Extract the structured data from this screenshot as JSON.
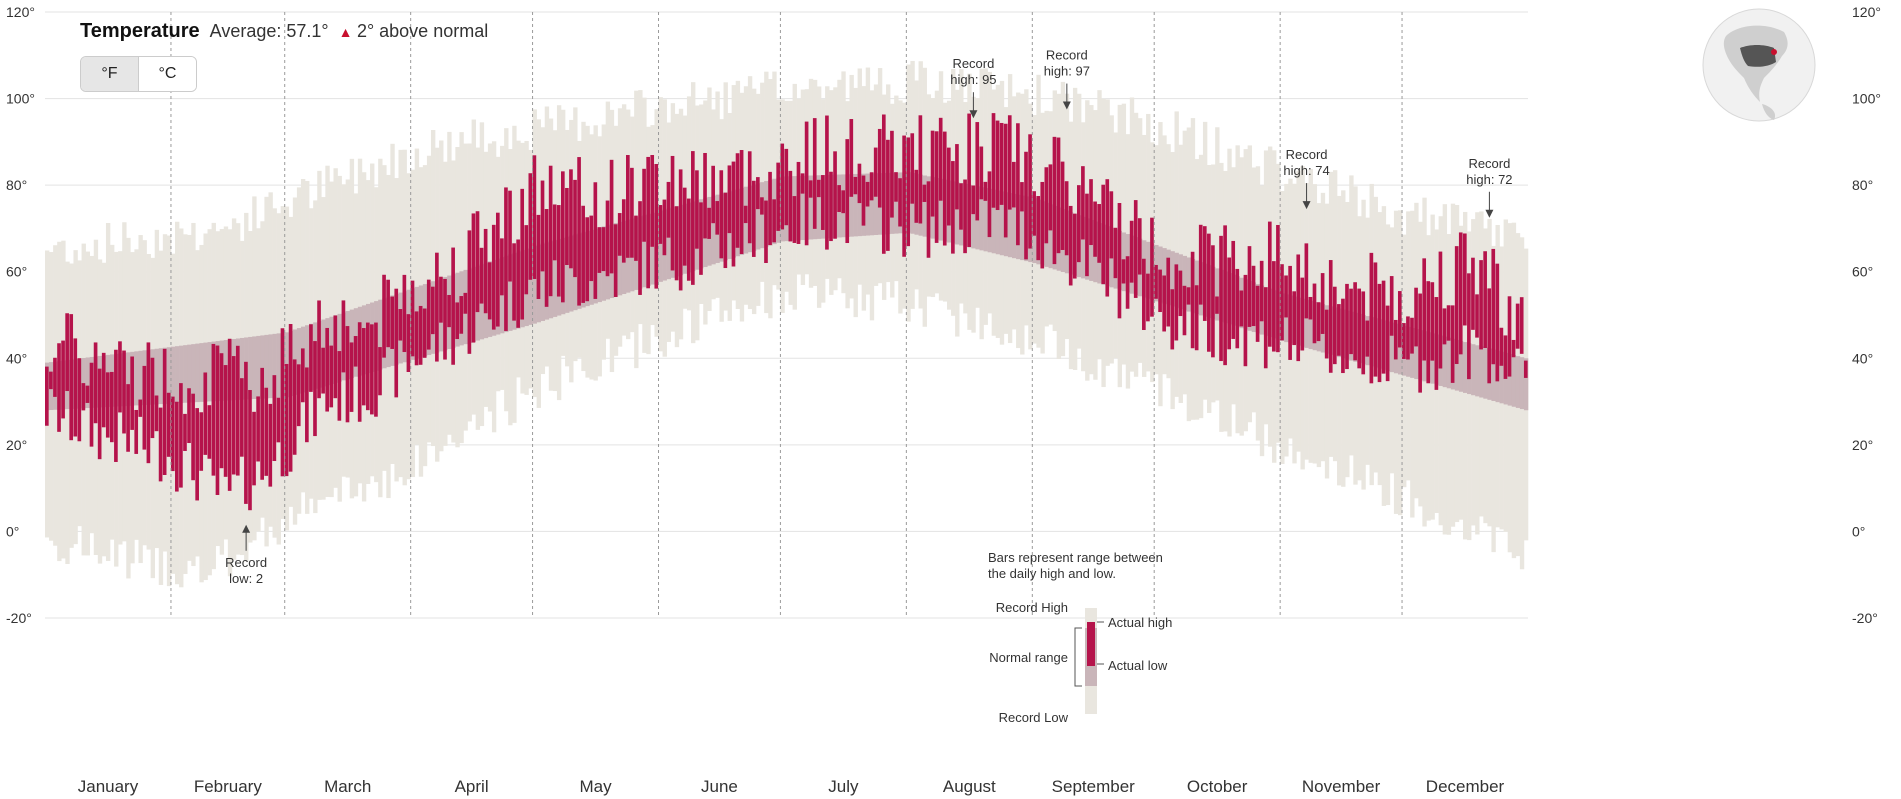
{
  "header": {
    "title": "Temperature",
    "average": "Average: 57.1°",
    "anomaly_arrow": "▲",
    "anomaly_text": "2° above normal"
  },
  "unit_toggle": {
    "fahrenheit": "°F",
    "celsius": "°C",
    "selected": "°F"
  },
  "legend": {
    "caption_line1": "Bars represent range between",
    "caption_line2": "the daily high and low.",
    "record_high": "Record High",
    "normal_range": "Normal range",
    "record_low": "Record Low",
    "actual_high": "Actual high",
    "actual_low": "Actual low"
  },
  "colors": {
    "actual": "#b5134b",
    "normal": "#c9b5b9",
    "record": "#e9e6df",
    "grid": "#e3e3e3",
    "accent": "#c8102e"
  },
  "chart_data": {
    "type": "bar",
    "ylim": [
      -20,
      120
    ],
    "yticks": [
      "120°",
      "100°",
      "80°",
      "60°",
      "40°",
      "20°",
      "0°",
      "-20°"
    ],
    "ytick_values": [
      120,
      100,
      80,
      60,
      40,
      20,
      0,
      -20
    ],
    "months": [
      "January",
      "February",
      "March",
      "April",
      "May",
      "June",
      "July",
      "August",
      "September",
      "October",
      "November",
      "December"
    ],
    "month_start_days": [
      1,
      32,
      60,
      91,
      121,
      152,
      182,
      213,
      244,
      274,
      305,
      335
    ],
    "days_in_year": 365,
    "normal_high_anchors": [
      [
        1,
        39
      ],
      [
        60,
        46
      ],
      [
        121,
        66
      ],
      [
        182,
        82
      ],
      [
        213,
        83
      ],
      [
        244,
        77
      ],
      [
        305,
        55
      ],
      [
        365,
        40
      ]
    ],
    "normal_low_anchors": [
      [
        1,
        28
      ],
      [
        60,
        31
      ],
      [
        121,
        48
      ],
      [
        182,
        67
      ],
      [
        213,
        69
      ],
      [
        244,
        62
      ],
      [
        305,
        44
      ],
      [
        365,
        28
      ]
    ],
    "record_high_anchors": [
      [
        1,
        65
      ],
      [
        45,
        70
      ],
      [
        60,
        76
      ],
      [
        91,
        88
      ],
      [
        121,
        93
      ],
      [
        152,
        98
      ],
      [
        182,
        102
      ],
      [
        213,
        104
      ],
      [
        244,
        101
      ],
      [
        274,
        94
      ],
      [
        305,
        83
      ],
      [
        335,
        73
      ],
      [
        365,
        68
      ]
    ],
    "record_low_anchors": [
      [
        1,
        -2
      ],
      [
        40,
        -10
      ],
      [
        60,
        3
      ],
      [
        91,
        15
      ],
      [
        121,
        33
      ],
      [
        152,
        45
      ],
      [
        182,
        55
      ],
      [
        213,
        53
      ],
      [
        244,
        45
      ],
      [
        274,
        33
      ],
      [
        305,
        20
      ],
      [
        335,
        8
      ],
      [
        365,
        -5
      ]
    ],
    "actual_high_anchors": [
      [
        1,
        45
      ],
      [
        15,
        38
      ],
      [
        30,
        36
      ],
      [
        45,
        36
      ],
      [
        55,
        36
      ],
      [
        70,
        50
      ],
      [
        80,
        47
      ],
      [
        91,
        58
      ],
      [
        100,
        60
      ],
      [
        121,
        80
      ],
      [
        135,
        77
      ],
      [
        152,
        82
      ],
      [
        160,
        82
      ],
      [
        175,
        82
      ],
      [
        190,
        88
      ],
      [
        200,
        87
      ],
      [
        213,
        88
      ],
      [
        225,
        88
      ],
      [
        235,
        90
      ],
      [
        244,
        85
      ],
      [
        255,
        80
      ],
      [
        265,
        72
      ],
      [
        274,
        65
      ],
      [
        285,
        63
      ],
      [
        305,
        64
      ],
      [
        320,
        56
      ],
      [
        335,
        55
      ],
      [
        345,
        60
      ],
      [
        355,
        62
      ],
      [
        365,
        45
      ]
    ],
    "actual_low_anchors": [
      [
        1,
        28
      ],
      [
        15,
        22
      ],
      [
        30,
        18
      ],
      [
        40,
        12
      ],
      [
        45,
        8
      ],
      [
        55,
        14
      ],
      [
        70,
        30
      ],
      [
        80,
        32
      ],
      [
        91,
        40
      ],
      [
        100,
        44
      ],
      [
        121,
        56
      ],
      [
        135,
        58
      ],
      [
        152,
        62
      ],
      [
        160,
        63
      ],
      [
        175,
        68
      ],
      [
        190,
        72
      ],
      [
        200,
        72
      ],
      [
        213,
        70
      ],
      [
        225,
        70
      ],
      [
        235,
        72
      ],
      [
        244,
        68
      ],
      [
        255,
        62
      ],
      [
        265,
        56
      ],
      [
        274,
        50
      ],
      [
        285,
        46
      ],
      [
        305,
        44
      ],
      [
        320,
        40
      ],
      [
        335,
        38
      ],
      [
        345,
        40
      ],
      [
        355,
        42
      ],
      [
        365,
        34
      ]
    ],
    "annotations": [
      {
        "line1": "Record",
        "line2": "low: 2",
        "day": 50,
        "value": 2,
        "position": "below"
      },
      {
        "line1": "Record",
        "line2": "high: 95",
        "day": 229,
        "value": 95,
        "position": "above"
      },
      {
        "line1": "Record",
        "line2": "high: 97",
        "day": 252,
        "value": 97,
        "position": "above"
      },
      {
        "line1": "Record",
        "line2": "high: 74",
        "day": 311,
        "value": 74,
        "position": "above"
      },
      {
        "line1": "Record",
        "line2": "high: 72",
        "day": 356,
        "value": 72,
        "position": "above"
      }
    ]
  }
}
